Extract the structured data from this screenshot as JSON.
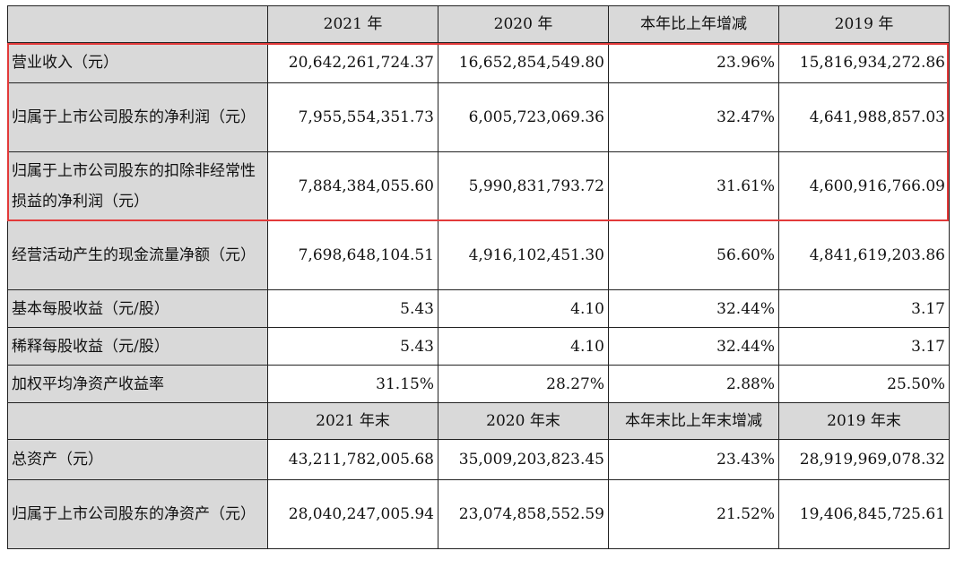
{
  "header1": [
    "",
    "2021 年",
    "2020 年",
    "本年比上年增减",
    "2019 年"
  ],
  "rows1": [
    {
      "label": "营业收入（元）",
      "v2021": "20,642,261,724.37",
      "v2020": "16,652,854,549.80",
      "chg": "23.96%",
      "v2019": "15,816,934,272.86"
    },
    {
      "label": "归属于上市公司股东的净利润（元）",
      "v2021": "7,955,554,351.73",
      "v2020": "6,005,723,069.36",
      "chg": "32.47%",
      "v2019": "4,641,988,857.03"
    },
    {
      "label": "归属于上市公司股东的扣除非经常性损益的净利润（元）",
      "v2021": "7,884,384,055.60",
      "v2020": "5,990,831,793.72",
      "chg": "31.61%",
      "v2019": "4,600,916,766.09"
    },
    {
      "label": "经营活动产生的现金流量净额（元）",
      "v2021": "7,698,648,104.51",
      "v2020": "4,916,102,451.30",
      "chg": "56.60%",
      "v2019": "4,841,619,203.86"
    },
    {
      "label": "基本每股收益（元/股）",
      "v2021": "5.43",
      "v2020": "4.10",
      "chg": "32.44%",
      "v2019": "3.17"
    },
    {
      "label": "稀释每股收益（元/股）",
      "v2021": "5.43",
      "v2020": "4.10",
      "chg": "32.44%",
      "v2019": "3.17"
    },
    {
      "label": "加权平均净资产收益率",
      "v2021": "31.15%",
      "v2020": "28.27%",
      "chg": "2.88%",
      "v2019": "25.50%"
    }
  ],
  "header2": [
    "",
    "2021 年末",
    "2020 年末",
    "本年末比上年末增减",
    "2019 年末"
  ],
  "rows2": [
    {
      "label": "总资产（元）",
      "v2021": "43,211,782,005.68",
      "v2020": "35,009,203,823.45",
      "chg": "23.43%",
      "v2019": "28,919,969,078.32"
    },
    {
      "label": "归属于上市公司股东的净资产（元）",
      "v2021": "28,040,247,005.94",
      "v2020": "23,074,858,552.59",
      "chg": "21.52%",
      "v2019": "19,406,845,725.61"
    }
  ]
}
